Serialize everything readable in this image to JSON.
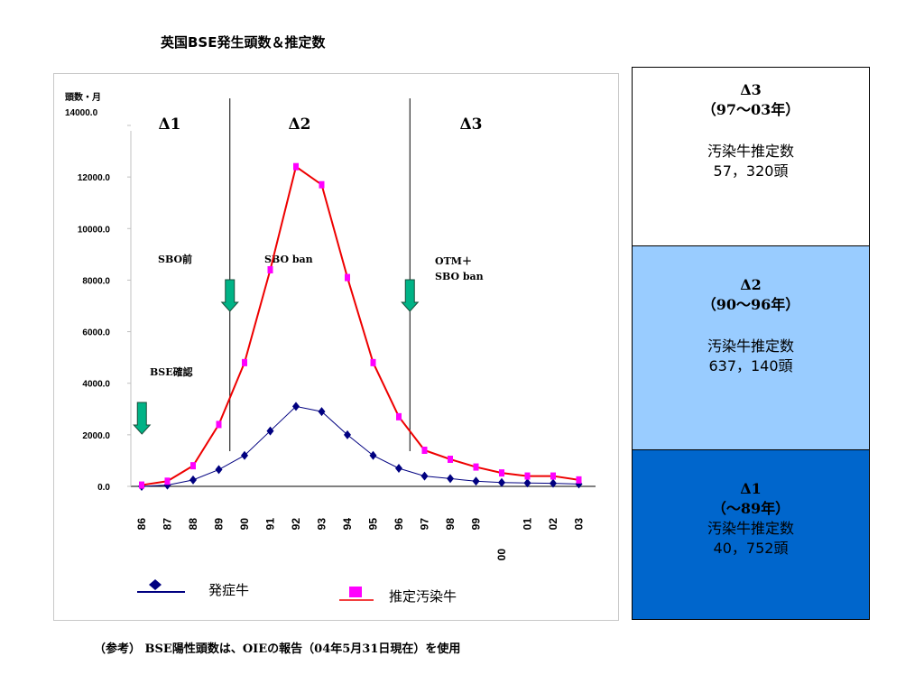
{
  "title": "英国BSE発生頭数＆推定数",
  "chart_data": {
    "type": "line",
    "ylabel": "頭数・月",
    "ylim": [
      0,
      14000
    ],
    "ytick_labels": [
      "0.0",
      "2000.0",
      "4000.0",
      "6000.0",
      "8000.0",
      "10000.0",
      "12000.0",
      "14000.0"
    ],
    "categories": [
      "86",
      "87",
      "88",
      "89",
      "90",
      "91",
      "92",
      "93",
      "94",
      "95",
      "96",
      "97",
      "98",
      "99",
      "00",
      "01",
      "02",
      "03"
    ],
    "series": [
      {
        "name": "発症牛",
        "color": "#000080",
        "marker": "diamond",
        "values": [
          0,
          50,
          250,
          650,
          1200,
          2150,
          3100,
          2900,
          2000,
          1200,
          700,
          400,
          300,
          200,
          150,
          130,
          120,
          90
        ]
      },
      {
        "name": "推定汚染牛",
        "color": "#ee0000",
        "marker": "square",
        "marker_color": "#ff00ff",
        "values": [
          50,
          200,
          800,
          2400,
          4800,
          8400,
          12400,
          11700,
          8100,
          4800,
          2700,
          1400,
          1050,
          750,
          520,
          400,
          400,
          250
        ]
      }
    ],
    "period_labels": [
      "Δ1",
      "Δ2",
      "Δ3"
    ],
    "vlines_at": [
      3.5,
      10.5
    ],
    "annotations": [
      {
        "text": "SBO前",
        "arrow_x": 3.5,
        "arrow_y_top": 8000,
        "arrow_y_bottom": 6900,
        "arrow_color": "#00b386"
      },
      {
        "text": "SBO  ban"
      },
      {
        "text": "OTM＋\nSBO ban",
        "arrow_x": 10.5,
        "arrow_y_top": 8000,
        "arrow_y_bottom": 6900,
        "arrow_color": "#00b386"
      },
      {
        "text": "BSE確認",
        "arrow_x": 0.5,
        "arrow_y_top": 3200,
        "arrow_y_bottom": 2100,
        "arrow_color": "#00b386"
      }
    ]
  },
  "side_panel": {
    "d3": {
      "label": "Δ3",
      "period": "（97〜03年）",
      "caption": "汚染牛推定数",
      "count": "57，320頭",
      "bg": "#ffffff"
    },
    "d2": {
      "label": "Δ2",
      "period": "（90〜96年）",
      "caption": "汚染牛推定数",
      "count": "637，140頭",
      "bg": "#99ccff"
    },
    "d1": {
      "label": "Δ1",
      "period": "（〜89年）",
      "caption": "汚染牛推定数",
      "count": "40，752頭",
      "bg": "#0066cc"
    }
  },
  "footnote": {
    "prefix": "（参考）",
    "text": "BSE陽性頭数は、OIEの報告（04年5月31日現在）を使用"
  }
}
